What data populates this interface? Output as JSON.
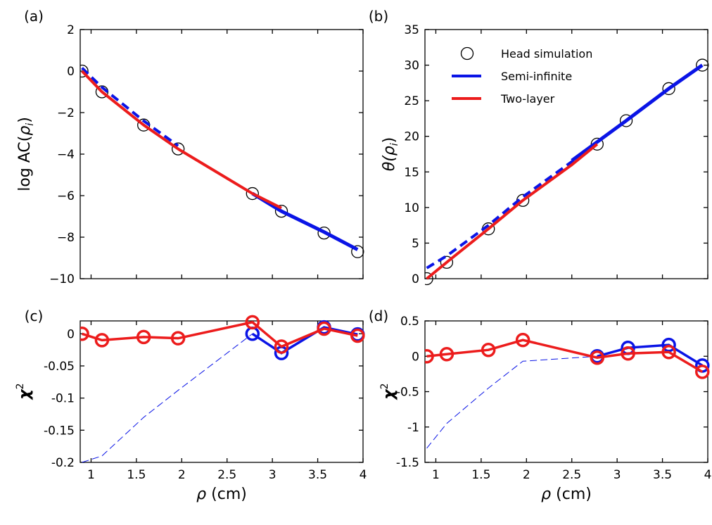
{
  "chart_data": [
    {
      "panel": "(a)",
      "type": "line",
      "ylabel_main": "log AC(",
      "ylabel_sym": "ρ",
      "ylabel_sub": "i",
      "ylabel_close": ")",
      "xlim": [
        0.88,
        4.0
      ],
      "ylim": [
        -10,
        2
      ],
      "yticks": [
        -10,
        -8,
        -6,
        -4,
        -2,
        0,
        2
      ],
      "ytick_labels": [
        "−10",
        "−8",
        "−6",
        "−4",
        "−2",
        "0",
        "2"
      ],
      "xticks": [
        1,
        1.5,
        2,
        2.5,
        3,
        3.5,
        4
      ],
      "show_xtick_labels": false,
      "series": [
        {
          "key": "sim",
          "style": "circles",
          "x": [
            0.9,
            1.12,
            1.58,
            1.96,
            2.78,
            3.1,
            3.57,
            3.94
          ],
          "y": [
            0.0,
            -1.0,
            -2.6,
            -3.75,
            -5.9,
            -6.75,
            -7.8,
            -8.7
          ]
        },
        {
          "key": "semi",
          "style": "dashed-blue",
          "x": [
            0.9,
            1.12,
            1.58,
            1.96
          ],
          "y": [
            0.15,
            -0.78,
            -2.4,
            -3.6
          ]
        },
        {
          "key": "semi_solid",
          "style": "solid-blue",
          "x": [
            2.78,
            3.1,
            3.57,
            3.94
          ],
          "y": [
            -5.9,
            -6.75,
            -7.75,
            -8.6
          ]
        },
        {
          "key": "two",
          "style": "solid-red",
          "x": [
            0.9,
            1.12,
            1.58,
            1.96,
            2.78,
            3.1
          ],
          "y": [
            0.0,
            -1.0,
            -2.6,
            -3.75,
            -5.9,
            -6.6
          ]
        }
      ]
    },
    {
      "panel": "(b)",
      "type": "line",
      "ylabel_sym": "θ(",
      "ylabel_sym2": "ρ",
      "ylabel_sub": "i",
      "ylabel_close": ")",
      "xlim": [
        0.88,
        4.0
      ],
      "ylim": [
        0,
        35
      ],
      "yticks": [
        0,
        5,
        10,
        15,
        20,
        25,
        30,
        35
      ],
      "ytick_labels": [
        "0",
        "5",
        "10",
        "15",
        "20",
        "25",
        "30",
        "35"
      ],
      "xticks": [
        1,
        1.5,
        2,
        2.5,
        3,
        3.5,
        4
      ],
      "show_xtick_labels": false,
      "legend": {
        "position": "top-left",
        "entries": [
          {
            "key": "sim",
            "label": "Head simulation",
            "style": "circle"
          },
          {
            "key": "semi",
            "label": "Semi-infinite",
            "style": "blue"
          },
          {
            "key": "two",
            "label": "Two-layer",
            "style": "red"
          }
        ]
      },
      "series": [
        {
          "key": "sim",
          "style": "circles",
          "x": [
            0.9,
            1.12,
            1.58,
            1.96,
            2.78,
            3.1,
            3.57,
            3.94
          ],
          "y": [
            0.0,
            2.3,
            7.0,
            11.0,
            18.9,
            22.2,
            26.7,
            30.0
          ]
        },
        {
          "key": "semi",
          "style": "dashed-blue",
          "x": [
            0.9,
            1.12,
            1.58,
            1.96,
            2.78
          ],
          "y": [
            1.5,
            3.2,
            7.5,
            11.5,
            19.0
          ]
        },
        {
          "key": "semi_solid",
          "style": "solid-blue",
          "x": [
            2.5,
            3.1,
            3.57,
            3.94
          ],
          "y": [
            16.6,
            22.2,
            26.7,
            30.0
          ]
        },
        {
          "key": "two",
          "style": "solid-red",
          "x": [
            0.9,
            1.12,
            1.58,
            1.96,
            2.5,
            2.78
          ],
          "y": [
            0.0,
            2.3,
            7.0,
            11.0,
            16.0,
            18.9
          ]
        }
      ]
    },
    {
      "panel": "(c)",
      "type": "line",
      "ylabel_sym": "χ",
      "ylabel_sup": "2",
      "xlabel_sym": "ρ",
      "xlabel_text": " (cm)",
      "xlim": [
        0.88,
        4.0
      ],
      "ylim": [
        -0.2,
        0.02
      ],
      "yticks": [
        -0.2,
        -0.15,
        -0.1,
        -0.05,
        0
      ],
      "ytick_labels": [
        "-0.2",
        "-0.15",
        "-0.1",
        "-0.05",
        "0"
      ],
      "xticks": [
        1,
        1.5,
        2,
        2.5,
        3,
        3.5,
        4
      ],
      "xtick_labels": [
        "1",
        "1.5",
        "2",
        "2.5",
        "3",
        "3.5",
        "4"
      ],
      "show_xtick_labels": true,
      "series": [
        {
          "key": "semi_dashed",
          "style": "thin-dashed-blue",
          "x": [
            0.9,
            1.12,
            1.58,
            1.96,
            2.78
          ],
          "y": [
            -0.2,
            -0.19,
            -0.13,
            -0.088,
            0.0
          ]
        },
        {
          "key": "semi",
          "style": "blue-circles",
          "x": [
            2.78,
            3.1,
            3.57,
            3.94
          ],
          "y": [
            0.0,
            -0.03,
            0.01,
            -0.001
          ]
        },
        {
          "key": "two",
          "style": "red-circles",
          "x": [
            0.9,
            1.12,
            1.58,
            1.96,
            2.78,
            3.1,
            3.57,
            3.94
          ],
          "y": [
            0.0,
            -0.01,
            -0.005,
            -0.007,
            0.018,
            -0.02,
            0.008,
            -0.003
          ]
        }
      ]
    },
    {
      "panel": "(d)",
      "type": "line",
      "ylabel_sym": "χ",
      "ylabel_sup": "2",
      "xlabel_sym": "ρ",
      "xlabel_text": " (cm)",
      "xlim": [
        0.88,
        4.0
      ],
      "ylim": [
        -1.5,
        0.5
      ],
      "yticks": [
        -1.5,
        -1,
        -0.5,
        0,
        0.5
      ],
      "ytick_labels": [
        "-1.5",
        "-1",
        "-0.5",
        "0",
        "0.5"
      ],
      "xticks": [
        1,
        1.5,
        2,
        2.5,
        3,
        3.5,
        4
      ],
      "xtick_labels": [
        "1",
        "1.5",
        "2",
        "2.5",
        "3",
        "3.5",
        "4"
      ],
      "show_xtick_labels": true,
      "series": [
        {
          "key": "semi_dashed",
          "style": "thin-dashed-blue",
          "x": [
            0.9,
            1.12,
            1.58,
            1.96,
            2.78
          ],
          "y": [
            -1.3,
            -0.95,
            -0.45,
            -0.07,
            0.0
          ]
        },
        {
          "key": "semi",
          "style": "blue-circles",
          "x": [
            2.78,
            3.12,
            3.57,
            3.94
          ],
          "y": [
            0.0,
            0.12,
            0.16,
            -0.13
          ]
        },
        {
          "key": "two",
          "style": "red-circles",
          "x": [
            0.9,
            1.12,
            1.58,
            1.96,
            2.78,
            3.12,
            3.57,
            3.94
          ],
          "y": [
            0.0,
            0.03,
            0.09,
            0.23,
            -0.02,
            0.04,
            0.06,
            -0.22
          ]
        }
      ]
    }
  ],
  "colors": {
    "blue": "#0a14e6",
    "red": "#ec1c1c",
    "black": "#000000"
  }
}
